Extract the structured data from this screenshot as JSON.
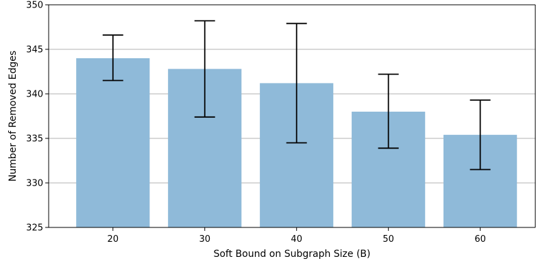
{
  "chart_data": {
    "type": "bar",
    "title": "",
    "xlabel": "Soft Bound on Subgraph Size (B)",
    "ylabel": "Number of Removed Edges",
    "categories": [
      "20",
      "30",
      "40",
      "50",
      "60"
    ],
    "values": [
      344.0,
      342.8,
      341.2,
      338.0,
      335.4
    ],
    "error_low": [
      341.5,
      337.4,
      334.5,
      333.9,
      331.5
    ],
    "error_high": [
      346.6,
      348.2,
      347.9,
      342.2,
      339.3
    ],
    "ylim": [
      325,
      350
    ],
    "yticks": [
      325,
      330,
      335,
      340,
      345,
      350
    ],
    "grid": "horizontal",
    "bar_color": "#8fbad9",
    "error_color": "#000000",
    "grid_color": "#b0b0b0"
  }
}
